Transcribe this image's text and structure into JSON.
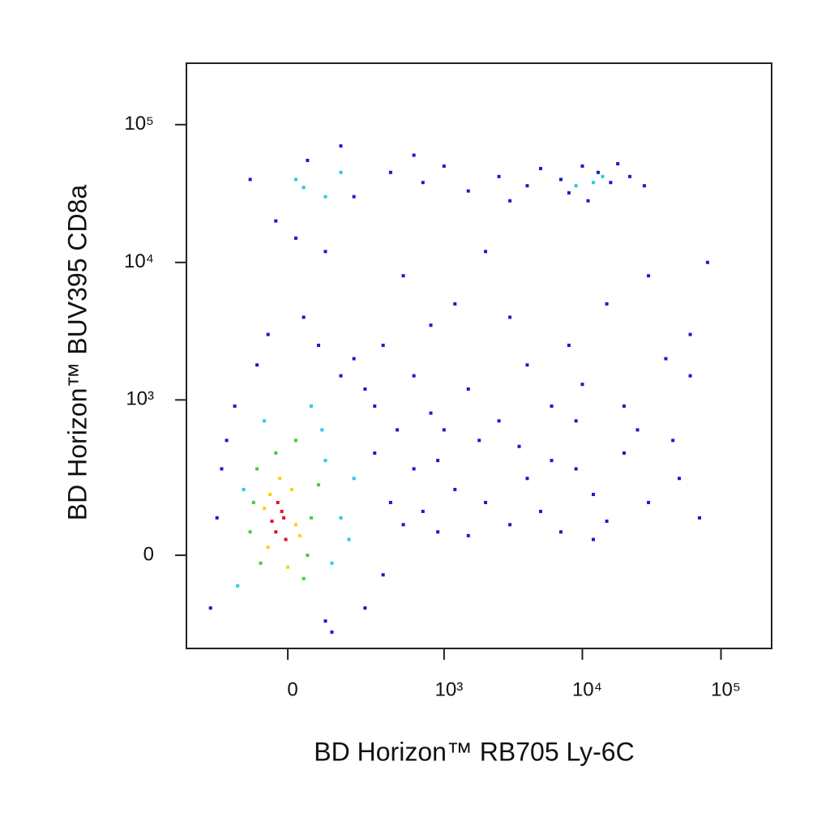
{
  "chart_data": {
    "type": "scatter",
    "x_label": "BD Horizon™ RB705 Ly-6C",
    "y_label": "BD Horizon™ BUV395 CD8a",
    "scale": "biexponential",
    "xlim": [
      -390,
      232000
    ],
    "ylim": [
      -340,
      279000
    ],
    "xticks": [
      0,
      {
        "value": 1000,
        "label": "10³"
      },
      {
        "value": 10000,
        "label": "10⁴"
      },
      {
        "value": 100000,
        "label": "10⁵"
      }
    ],
    "yticks": [
      0,
      {
        "value": 1000,
        "label": "10³"
      },
      {
        "value": 10000,
        "label": "10⁴"
      },
      {
        "value": 100000,
        "label": "10⁵"
      }
    ],
    "series": [
      {
        "color": "#e8101a",
        "x": [
          -30,
          -10,
          -25,
          -5,
          -40,
          -15
        ],
        "y": [
          60,
          100,
          150,
          40,
          90,
          120
        ]
      },
      {
        "color": "#f2d50f",
        "x": [
          -50,
          10,
          -60,
          20,
          -20,
          0,
          -45,
          30
        ],
        "y": [
          20,
          200,
          130,
          80,
          250,
          -30,
          180,
          50
        ]
      },
      {
        "color": "#3fcf3a",
        "x": [
          -80,
          40,
          -90,
          60,
          -30,
          80,
          -70,
          20,
          -100,
          50
        ],
        "y": [
          300,
          -60,
          150,
          100,
          400,
          220,
          -20,
          500,
          60,
          0
        ]
      },
      {
        "color": "#2ec8e8",
        "x": [
          -120,
          100,
          150,
          -140,
          90,
          120,
          200,
          -60,
          60,
          180,
          20,
          40,
          150,
          100,
          12000,
          14000,
          9000
        ],
        "y": [
          200,
          350,
          100,
          -80,
          600,
          -20,
          250,
          700,
          900,
          40,
          40000,
          35000,
          45000,
          30000,
          38000,
          42000,
          36000
        ]
      },
      {
        "color": "#1a1acc",
        "x": [
          -150,
          250,
          300,
          400,
          500,
          600,
          700,
          900,
          350,
          -200,
          150,
          80,
          -50,
          200,
          450,
          800,
          1200,
          1500,
          2000,
          3000,
          4000,
          5000,
          7000,
          9000,
          12000,
          15000,
          20000,
          30000,
          50000,
          70000,
          1500,
          2500,
          4000,
          6000,
          10000,
          25000,
          40000,
          60000,
          800,
          1200,
          3000,
          500,
          20,
          100,
          -30,
          2000,
          8000,
          15000,
          30000,
          60000,
          80000,
          -100,
          50,
          200,
          400,
          700,
          1000,
          1500,
          2500,
          4000,
          5000,
          7000,
          8000,
          10000,
          11000,
          13000,
          16000,
          18000,
          22000,
          28000,
          3000,
          600,
          150,
          -250,
          -180,
          100,
          300,
          250,
          1000,
          600,
          -80,
          40,
          120,
          -220,
          350,
          900,
          1800,
          3500,
          6000,
          9000,
          20000,
          12000,
          45000
        ],
        "y": [
          900,
          1200,
          400,
          150,
          80,
          300,
          120,
          60,
          -50,
          300,
          1500,
          2500,
          3000,
          2000,
          600,
          800,
          200,
          50,
          150,
          80,
          250,
          120,
          60,
          300,
          180,
          90,
          400,
          150,
          250,
          100,
          1200,
          700,
          1800,
          900,
          1300,
          600,
          2000,
          1500,
          3500,
          5000,
          4000,
          8000,
          15000,
          12000,
          20000,
          12000,
          2500,
          5000,
          8000,
          3000,
          10000,
          40000,
          55000,
          30000,
          45000,
          38000,
          50000,
          33000,
          42000,
          36000,
          48000,
          40000,
          32000,
          50000,
          28000,
          45000,
          38000,
          52000,
          42000,
          36000,
          28000,
          60000,
          70000,
          -150,
          500,
          -200,
          900,
          -150,
          600,
          1500,
          1800,
          4000,
          -250,
          100,
          2500,
          350,
          500,
          450,
          350,
          700,
          900,
          40,
          500
        ]
      }
    ]
  }
}
